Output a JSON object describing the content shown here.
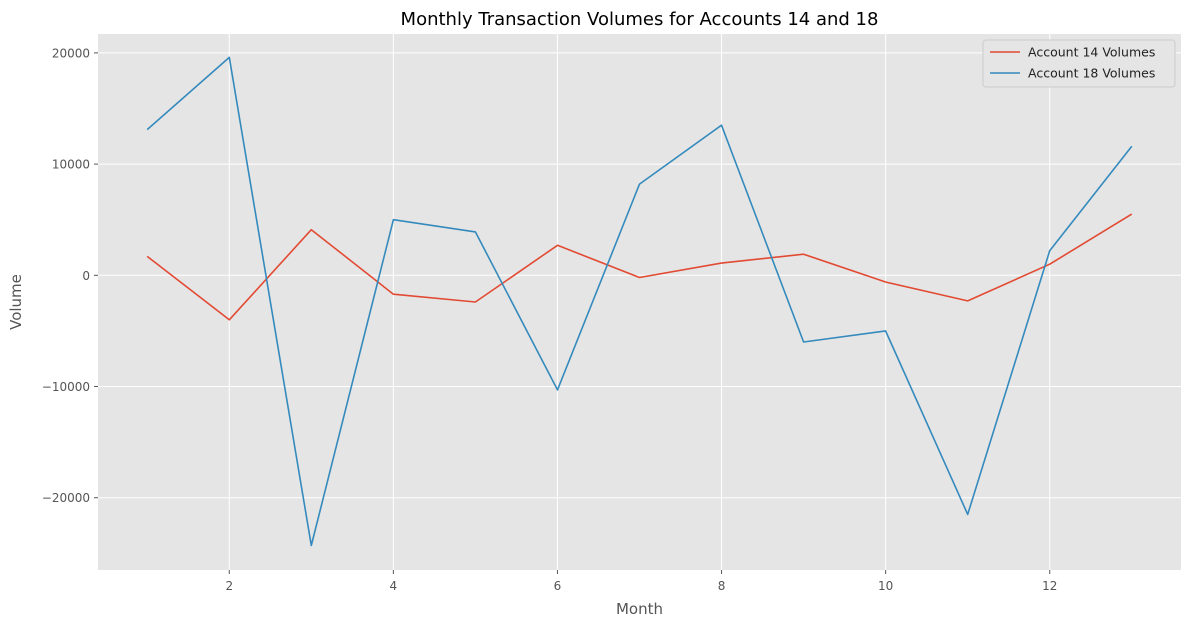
{
  "chart_data": {
    "type": "line",
    "title": "Monthly Transaction Volumes for Accounts 14 and 18",
    "xlabel": "Month",
    "ylabel": "Volume",
    "x": [
      1,
      2,
      3,
      4,
      5,
      6,
      7,
      8,
      9,
      10,
      11,
      12,
      13
    ],
    "xlim": [
      0.4,
      13.6
    ],
    "ylim": [
      -26500,
      21700
    ],
    "xticks": [
      2,
      4,
      6,
      8,
      10,
      12
    ],
    "yticks": [
      20000,
      10000,
      0,
      -10000,
      -20000
    ],
    "ytick_labels": [
      "20000",
      "10000",
      "0",
      "−10000",
      "−20000"
    ],
    "grid": true,
    "legend_position": "top-right",
    "colors": {
      "background": "#e5e5e5",
      "grid": "#ffffff"
    },
    "series": [
      {
        "name": "Account 14 Volumes",
        "color": "#e24a33",
        "values": [
          1700,
          -4000,
          4100,
          -1700,
          -2400,
          2700,
          -200,
          1100,
          1900,
          -600,
          -2300,
          1000,
          5500
        ]
      },
      {
        "name": "Account 18 Volumes",
        "color": "#348abd",
        "values": [
          13100,
          19600,
          -24300,
          5000,
          3900,
          -10300,
          8200,
          13500,
          -6000,
          -5000,
          -21500,
          2200,
          11600
        ]
      }
    ]
  }
}
